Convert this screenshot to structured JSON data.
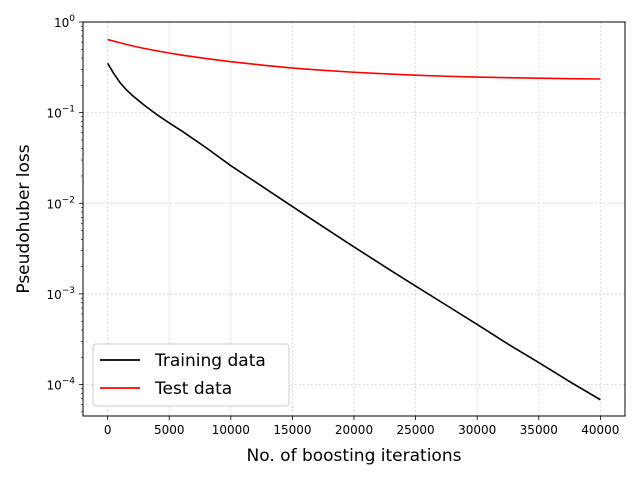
{
  "chart_data": {
    "type": "line",
    "title": "",
    "xlabel": "No. of boosting iterations",
    "ylabel": "Pseudohuber loss",
    "xlim": [
      -2000,
      42000
    ],
    "ylim": [
      4.5e-05,
      1.0
    ],
    "yscale": "log",
    "grid": true,
    "legend": "lower-left",
    "x_ticks": [
      0,
      5000,
      10000,
      15000,
      20000,
      25000,
      30000,
      35000,
      40000
    ],
    "x_tick_labels": [
      "0",
      "5000",
      "10000",
      "15000",
      "20000",
      "25000",
      "30000",
      "35000",
      "40000"
    ],
    "y_ticks": [
      0.0001,
      0.001,
      0.01,
      0.1,
      1
    ],
    "y_tick_labels": [
      {
        "base": "10",
        "exp": "−4"
      },
      {
        "base": "10",
        "exp": "−3"
      },
      {
        "base": "10",
        "exp": "−2"
      },
      {
        "base": "10",
        "exp": "−1"
      },
      {
        "base": "10",
        "exp": "0"
      }
    ],
    "series": [
      {
        "name": "Training data",
        "color": "#000000",
        "x": [
          0,
          500,
          1000,
          1500,
          2000,
          3000,
          4000,
          5000,
          6000,
          8000,
          10000,
          12500,
          15000,
          17500,
          20000,
          22500,
          25000,
          27500,
          30000,
          32500,
          35000,
          37500,
          40000
        ],
        "y": [
          0.35,
          0.27,
          0.215,
          0.18,
          0.155,
          0.12,
          0.095,
          0.077,
          0.063,
          0.041,
          0.026,
          0.0155,
          0.0092,
          0.0055,
          0.0033,
          0.002,
          0.00122,
          0.00075,
          0.00046,
          0.00028,
          0.000175,
          0.000108,
          6.8e-05
        ]
      },
      {
        "name": "Test data",
        "color": "#ff0000",
        "x": [
          0,
          1000,
          2000,
          3000,
          4000,
          5000,
          6000,
          8000,
          10000,
          12500,
          15000,
          17500,
          20000,
          22500,
          25000,
          27500,
          30000,
          32500,
          35000,
          37500,
          40000
        ],
        "y": [
          0.64,
          0.59,
          0.545,
          0.51,
          0.48,
          0.455,
          0.432,
          0.395,
          0.365,
          0.335,
          0.31,
          0.293,
          0.279,
          0.268,
          0.259,
          0.252,
          0.247,
          0.243,
          0.24,
          0.237,
          0.235
        ]
      }
    ]
  }
}
